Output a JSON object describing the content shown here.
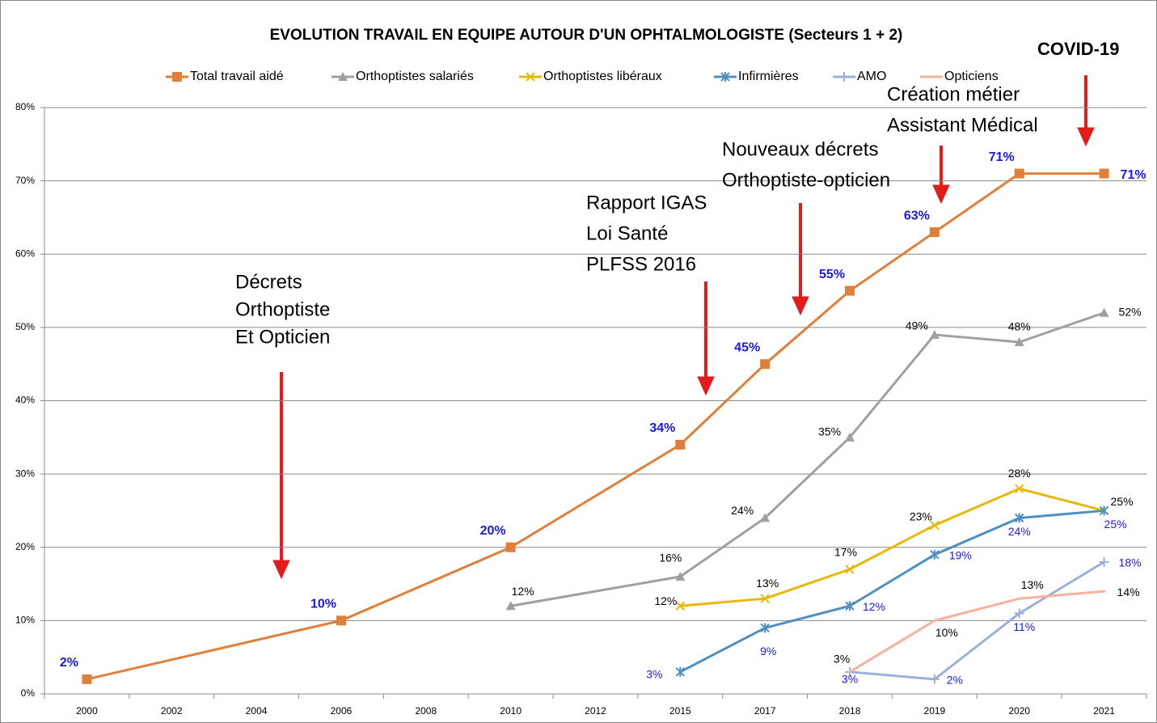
{
  "chart_data": {
    "type": "line",
    "title": "EVOLUTION TRAVAIL EN EQUIPE AUTOUR D'UN OPHTALMOLOGISTE (Secteurs 1 + 2)",
    "categories": [
      "2000",
      "2002",
      "2004",
      "2006",
      "2008",
      "2010",
      "2012",
      "2015",
      "2017",
      "2018",
      "2019",
      "2020",
      "2021"
    ],
    "ylim": [
      0,
      80
    ],
    "yticks": [
      {
        "value": 0,
        "label": "0%"
      },
      {
        "value": 10,
        "label": "10%"
      },
      {
        "value": 20,
        "label": "20%"
      },
      {
        "value": 30,
        "label": "30%"
      },
      {
        "value": 40,
        "label": "40%"
      },
      {
        "value": 50,
        "label": "50%"
      },
      {
        "value": 60,
        "label": "60%"
      },
      {
        "value": 70,
        "label": "70%"
      },
      {
        "value": 80,
        "label": "80%"
      }
    ],
    "grid": true,
    "legend": "top",
    "series": [
      {
        "name": "Total travail aidé",
        "color": "#e07f3a",
        "marker": "square",
        "label_color": "#1a1adc",
        "values": [
          2,
          null,
          null,
          10,
          null,
          20,
          null,
          34,
          45,
          55,
          63,
          71,
          71
        ],
        "value_labels": [
          "2%",
          null,
          null,
          "10%",
          null,
          "20%",
          null,
          "34%",
          "45%",
          "55%",
          "63%",
          "71%",
          "71%"
        ]
      },
      {
        "name": "Orthoptistes salariés",
        "color": "#a0a0a0",
        "marker": "triangle",
        "label_color": "#000000",
        "values": [
          null,
          null,
          null,
          null,
          null,
          12,
          null,
          16,
          24,
          35,
          49,
          48,
          52
        ],
        "value_labels": [
          null,
          null,
          null,
          null,
          null,
          "12%",
          null,
          "16%",
          "24%",
          "35%",
          "49%",
          "48%",
          "52%"
        ]
      },
      {
        "name": "Orthoptistes libéraux",
        "color": "#e8b80c",
        "marker": "x",
        "label_color": "#000000",
        "values": [
          null,
          null,
          null,
          null,
          null,
          null,
          null,
          12,
          13,
          17,
          23,
          28,
          25
        ],
        "value_labels": [
          null,
          null,
          null,
          null,
          null,
          null,
          null,
          "12%",
          "13%",
          "17%",
          "23%",
          "28%",
          "25%"
        ]
      },
      {
        "name": "Infirmières",
        "color": "#4e90c2",
        "marker": "star",
        "label_color": "#1a1adc",
        "values": [
          null,
          null,
          null,
          null,
          null,
          null,
          null,
          3,
          9,
          12,
          19,
          24,
          25
        ],
        "value_labels": [
          null,
          null,
          null,
          null,
          null,
          null,
          null,
          "3%",
          "9%",
          "12%",
          "19%",
          "24%",
          "25%"
        ]
      },
      {
        "name": "AMO",
        "color": "#9cb0dc",
        "marker": "plus",
        "label_color": "#1a1adc",
        "values": [
          null,
          null,
          null,
          null,
          null,
          null,
          null,
          null,
          null,
          3,
          2,
          11,
          18
        ],
        "value_labels": [
          null,
          null,
          null,
          null,
          null,
          null,
          null,
          null,
          null,
          "3%",
          "2%",
          "11%",
          "18%"
        ]
      },
      {
        "name": "Opticiens",
        "color": "#f5b29c",
        "marker": "none",
        "label_color": "#000000",
        "values": [
          null,
          null,
          null,
          null,
          null,
          null,
          null,
          null,
          null,
          3,
          10,
          13,
          14
        ],
        "value_labels": [
          null,
          null,
          null,
          null,
          null,
          null,
          null,
          null,
          null,
          "3%",
          "10%",
          "13%",
          "14%"
        ]
      }
    ],
    "annotations": [
      {
        "lines": [
          "Décrets",
          "Orthoptiste",
          "Et Opticien"
        ]
      },
      {
        "lines": [
          "Rapport IGAS",
          "Loi Santé",
          "PLFSS 2016"
        ]
      },
      {
        "lines": [
          "Nouveaux décrets",
          "Orthoptiste-opticien"
        ]
      },
      {
        "lines": [
          "Création métier",
          "Assistant Médical"
        ]
      },
      {
        "lines": [
          "COVID-19"
        ]
      }
    ]
  }
}
